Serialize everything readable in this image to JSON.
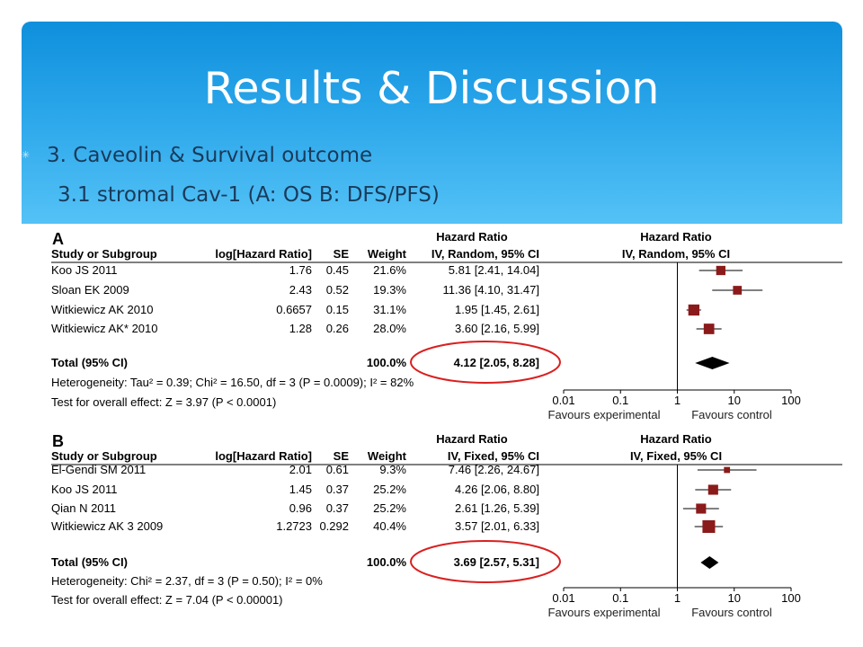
{
  "slide": {
    "title": "Results & Discussion",
    "bullet_icon": "sparkle-icon",
    "line1": "3. Caveolin & Survival outcome",
    "line2": "3.1 stromal Cav-1 (A: OS B: DFS/PFS)"
  },
  "chart_data": [
    {
      "type": "table",
      "panel": "A",
      "headers": [
        "Study or Subgroup",
        "log[Hazard Ratio]",
        "SE",
        "Weight",
        "Hazard Ratio IV, Random, 95% CI",
        "Hazard Ratio IV, Random, 95% CI"
      ],
      "hr_header": "Hazard Ratio",
      "method": "IV, Random, 95% CI",
      "studies": [
        {
          "name": "Koo JS 2011",
          "loghr": "1.76",
          "se": "0.45",
          "weight": "21.6%",
          "ci_text": "5.81 [2.41, 14.04]",
          "hr": 5.81,
          "lo": 2.41,
          "hi": 14.04,
          "w": 21.6
        },
        {
          "name": "Sloan EK 2009",
          "loghr": "2.43",
          "se": "0.52",
          "weight": "19.3%",
          "ci_text": "11.36 [4.10, 31.47]",
          "hr": 11.36,
          "lo": 4.1,
          "hi": 31.47,
          "w": 19.3
        },
        {
          "name": "Witkiewicz AK 2010",
          "loghr": "0.6657",
          "se": "0.15",
          "weight": "31.1%",
          "ci_text": "1.95 [1.45, 2.61]",
          "hr": 1.95,
          "lo": 1.45,
          "hi": 2.61,
          "w": 31.1
        },
        {
          "name": "Witkiewicz AK* 2010",
          "loghr": "1.28",
          "se": "0.26",
          "weight": "28.0%",
          "ci_text": "3.60 [2.16, 5.99]",
          "hr": 3.6,
          "lo": 2.16,
          "hi": 5.99,
          "w": 28.0
        }
      ],
      "total": {
        "label": "Total (95% CI)",
        "weight": "100.0%",
        "ci_text": "4.12 [2.05, 8.28]",
        "hr": 4.12,
        "lo": 2.05,
        "hi": 8.28
      },
      "heterogeneity": "Heterogeneity: Tau² = 0.39; Chi² = 16.50, df = 3 (P = 0.0009); I² = 82%",
      "overall_effect": "Test for overall effect: Z = 3.97 (P < 0.0001)",
      "x_scale": "log",
      "x_ticks": [
        "0.01",
        "0.1",
        "1",
        "10",
        "100"
      ],
      "x_tick_values": [
        0.01,
        0.1,
        1,
        10,
        100
      ],
      "xlim": [
        0.01,
        100
      ],
      "favours_left": "Favours experimental",
      "favours_right": "Favours control"
    },
    {
      "type": "table",
      "panel": "B",
      "headers": [
        "Study or Subgroup",
        "log[Hazard Ratio]",
        "SE",
        "Weight",
        "Hazard Ratio IV, Fixed, 95% CI",
        "Hazard Ratio IV, Fixed, 95% CI"
      ],
      "hr_header": "Hazard Ratio",
      "method": "IV, Fixed, 95% CI",
      "studies": [
        {
          "name": "El-Gendi SM 2011",
          "loghr": "2.01",
          "se": "0.61",
          "weight": "9.3%",
          "ci_text": "7.46 [2.26, 24.67]",
          "hr": 7.46,
          "lo": 2.26,
          "hi": 24.67,
          "w": 9.3
        },
        {
          "name": "Koo JS 2011",
          "loghr": "1.45",
          "se": "0.37",
          "weight": "25.2%",
          "ci_text": "4.26 [2.06, 8.80]",
          "hr": 4.26,
          "lo": 2.06,
          "hi": 8.8,
          "w": 25.2
        },
        {
          "name": "Qian N 2011",
          "loghr": "0.96",
          "se": "0.37",
          "weight": "25.2%",
          "ci_text": "2.61 [1.26, 5.39]",
          "hr": 2.61,
          "lo": 1.26,
          "hi": 5.39,
          "w": 25.2
        },
        {
          "name": "Witkiewicz AK 3 2009",
          "loghr": "1.2723",
          "se": "0.292",
          "weight": "40.4%",
          "ci_text": "3.57 [2.01, 6.33]",
          "hr": 3.57,
          "lo": 2.01,
          "hi": 6.33,
          "w": 40.4
        }
      ],
      "total": {
        "label": "Total (95% CI)",
        "weight": "100.0%",
        "ci_text": "3.69 [2.57, 5.31]",
        "hr": 3.69,
        "lo": 2.57,
        "hi": 5.31
      },
      "heterogeneity": "Heterogeneity: Chi² = 2.37, df = 3 (P = 0.50); I² = 0%",
      "overall_effect": "Test for overall effect: Z = 7.04 (P < 0.00001)",
      "x_scale": "log",
      "x_ticks": [
        "0.01",
        "0.1",
        "1",
        "10",
        "100"
      ],
      "x_tick_values": [
        0.01,
        0.1,
        1,
        10,
        100
      ],
      "xlim": [
        0.01,
        100
      ],
      "favours_left": "Favours experimental",
      "favours_right": "Favours control"
    }
  ],
  "colors": {
    "banner": "#1e9ce6",
    "title": "#ffffff",
    "body_text": "#1a3a5a",
    "marker": "#8b1a1a",
    "highlight": "#d92020"
  }
}
